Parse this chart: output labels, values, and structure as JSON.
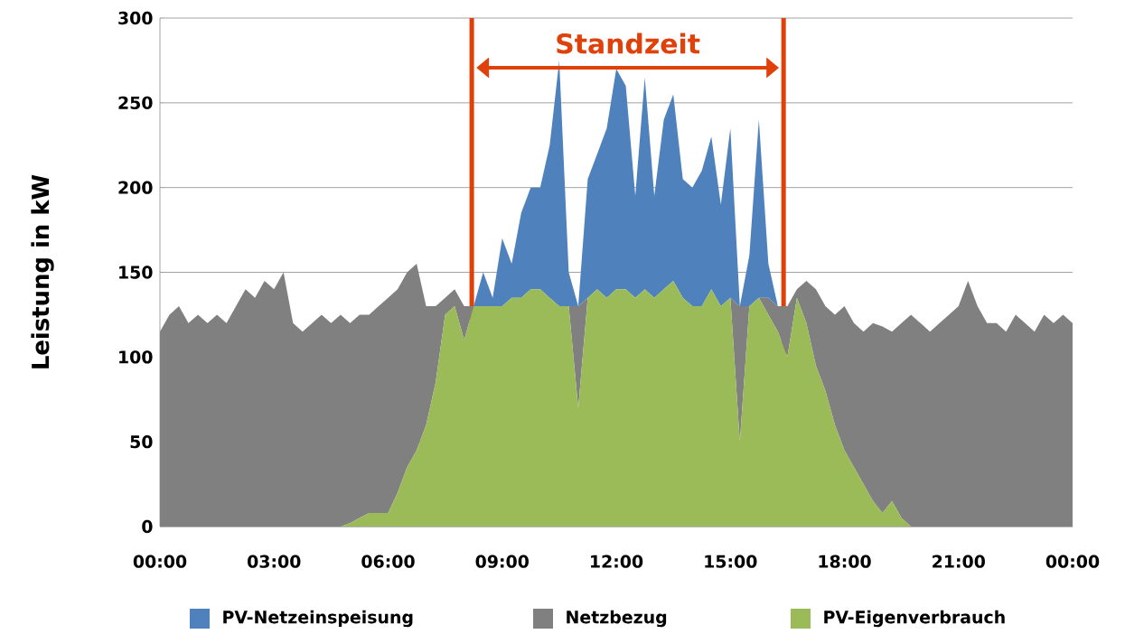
{
  "chart_data": {
    "type": "area",
    "stacked": true,
    "ylabel": "Leistung in kW",
    "x": [
      0,
      0.25,
      0.5,
      0.75,
      1,
      1.25,
      1.5,
      1.75,
      2,
      2.25,
      2.5,
      2.75,
      3,
      3.25,
      3.5,
      3.75,
      4,
      4.25,
      4.5,
      4.75,
      5,
      5.25,
      5.5,
      5.75,
      6,
      6.25,
      6.5,
      6.75,
      7,
      7.25,
      7.5,
      7.75,
      8,
      8.25,
      8.5,
      8.75,
      9,
      9.25,
      9.5,
      9.75,
      10,
      10.25,
      10.5,
      10.75,
      11,
      11.25,
      11.5,
      11.75,
      12,
      12.25,
      12.5,
      12.75,
      13,
      13.25,
      13.5,
      13.75,
      14,
      14.25,
      14.5,
      14.75,
      15,
      15.25,
      15.5,
      15.75,
      16,
      16.25,
      16.5,
      16.75,
      17,
      17.25,
      17.5,
      17.75,
      18,
      18.25,
      18.5,
      18.75,
      19,
      19.25,
      19.5,
      19.75,
      20,
      20.25,
      20.5,
      20.75,
      21,
      21.25,
      21.5,
      21.75,
      22,
      22.25,
      22.5,
      22.75,
      23,
      23.25,
      23.5,
      23.75,
      24
    ],
    "series": [
      {
        "name": "PV-Eigenverbrauch",
        "color": "#9bbb59",
        "values": [
          0,
          0,
          0,
          0,
          0,
          0,
          0,
          0,
          0,
          0,
          0,
          0,
          0,
          0,
          0,
          0,
          0,
          0,
          0,
          0,
          2,
          5,
          8,
          8,
          8,
          20,
          35,
          45,
          60,
          85,
          125,
          130,
          110,
          130,
          130,
          130,
          130,
          135,
          135,
          140,
          140,
          135,
          130,
          130,
          70,
          135,
          140,
          135,
          140,
          140,
          135,
          140,
          135,
          140,
          145,
          135,
          130,
          130,
          140,
          130,
          135,
          50,
          130,
          135,
          125,
          115,
          100,
          135,
          120,
          95,
          80,
          60,
          45,
          35,
          25,
          15,
          8,
          15,
          5,
          0,
          0,
          0,
          0,
          0,
          0,
          0,
          0,
          0,
          0,
          0,
          0,
          0,
          0,
          0,
          0,
          0,
          0
        ]
      },
      {
        "name": "Netzbezug",
        "color": "#808080",
        "values": [
          115,
          125,
          130,
          120,
          125,
          120,
          125,
          120,
          130,
          140,
          135,
          145,
          140,
          150,
          120,
          115,
          120,
          125,
          120,
          125,
          118,
          120,
          117,
          122,
          127,
          120,
          115,
          110,
          70,
          45,
          10,
          10,
          20,
          0,
          0,
          0,
          0,
          0,
          0,
          0,
          0,
          0,
          0,
          0,
          60,
          0,
          0,
          0,
          0,
          0,
          0,
          0,
          0,
          0,
          0,
          0,
          0,
          0,
          0,
          0,
          0,
          80,
          0,
          0,
          10,
          15,
          30,
          5,
          25,
          45,
          50,
          65,
          85,
          85,
          90,
          105,
          110,
          100,
          115,
          125,
          120,
          115,
          120,
          125,
          130,
          145,
          130,
          120,
          120,
          115,
          125,
          120,
          115,
          125,
          120,
          125,
          120
        ]
      },
      {
        "name": "PV-Netzeinspeisung",
        "color": "#4f81bd",
        "values": [
          0,
          0,
          0,
          0,
          0,
          0,
          0,
          0,
          0,
          0,
          0,
          0,
          0,
          0,
          0,
          0,
          0,
          0,
          0,
          0,
          0,
          0,
          0,
          0,
          0,
          0,
          0,
          0,
          0,
          0,
          0,
          0,
          0,
          0,
          20,
          5,
          40,
          20,
          50,
          60,
          60,
          90,
          145,
          20,
          0,
          70,
          80,
          100,
          130,
          120,
          60,
          125,
          60,
          100,
          110,
          70,
          70,
          80,
          90,
          60,
          100,
          0,
          30,
          105,
          20,
          0,
          0,
          0,
          0,
          0,
          0,
          0,
          0,
          0,
          0,
          0,
          0,
          0,
          0,
          0,
          0,
          0,
          0,
          0,
          0,
          0,
          0,
          0,
          0,
          0,
          0,
          0,
          0,
          0,
          0,
          0,
          0
        ]
      }
    ],
    "xlim": [
      0,
      24
    ],
    "xticks": [
      {
        "value": 0,
        "label": "00:00"
      },
      {
        "value": 3,
        "label": "03:00"
      },
      {
        "value": 6,
        "label": "06:00"
      },
      {
        "value": 9,
        "label": "09:00"
      },
      {
        "value": 12,
        "label": "12:00"
      },
      {
        "value": 15,
        "label": "15:00"
      },
      {
        "value": 18,
        "label": "18:00"
      },
      {
        "value": 21,
        "label": "21:00"
      },
      {
        "value": 24,
        "label": "00:00"
      }
    ],
    "ylim": [
      0,
      300
    ],
    "yticks": [
      0,
      50,
      100,
      150,
      200,
      250,
      300
    ],
    "grid": "y",
    "legend": "bottom",
    "ref_lines": [
      {
        "axis": "x",
        "value": 8.2,
        "color": "#e0400a"
      },
      {
        "axis": "x",
        "value": 16.4,
        "color": "#e0400a"
      }
    ],
    "annotations": [
      "Standzeit"
    ]
  }
}
